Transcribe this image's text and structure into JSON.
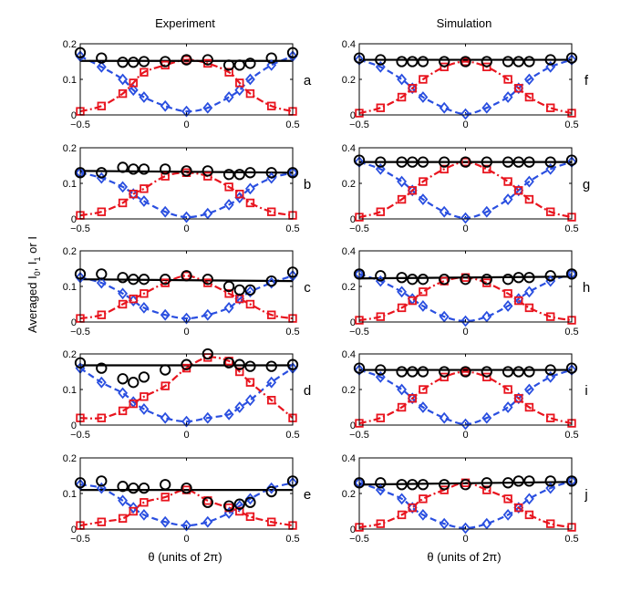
{
  "figure": {
    "column_titles": [
      "Experiment",
      "Simulation"
    ],
    "xlabel": "θ (units of 2π)",
    "ylabel": "Averaged I",
    "ylabel_sub0": "0",
    "ylabel_mid": ", I",
    "ylabel_sub1": "1",
    "ylabel_end": " or I"
  },
  "colors": {
    "I": "#000000",
    "I0": "#e8141e",
    "I1": "#2a4fe0"
  },
  "chart_data": [
    {
      "type": "scatter",
      "panel": "a",
      "column": 0,
      "row": 0,
      "xlim": [
        -0.5,
        0.5
      ],
      "ylim": [
        0,
        0.2
      ],
      "xticks": [
        -0.5,
        0,
        0.5
      ],
      "xtick_labels": [
        "−0.5",
        "0",
        "0.5"
      ],
      "yticks": [
        0,
        0.1,
        0.2
      ],
      "ytick_labels": [
        "0",
        "0.1",
        "0.2"
      ],
      "x": [
        -0.5,
        -0.4,
        -0.3,
        -0.25,
        -0.2,
        -0.1,
        0,
        0.1,
        0.2,
        0.25,
        0.3,
        0.4,
        0.5
      ],
      "series": [
        {
          "name": "I",
          "values": [
            0.175,
            0.16,
            0.148,
            0.148,
            0.15,
            0.15,
            0.155,
            0.155,
            0.14,
            0.14,
            0.145,
            0.16,
            0.175
          ],
          "fit": [
            0.152,
            0.152
          ]
        },
        {
          "name": "I0",
          "values": [
            0.01,
            0.025,
            0.06,
            0.09,
            0.12,
            0.14,
            0.155,
            0.145,
            0.12,
            0.09,
            0.06,
            0.025,
            0.01
          ]
        },
        {
          "name": "I1",
          "values": [
            0.165,
            0.135,
            0.1,
            0.07,
            0.05,
            0.025,
            0.01,
            0.02,
            0.05,
            0.07,
            0.1,
            0.14,
            0.165
          ]
        }
      ]
    },
    {
      "type": "scatter",
      "panel": "b",
      "column": 0,
      "row": 1,
      "xlim": [
        -0.5,
        0.5
      ],
      "ylim": [
        0,
        0.2
      ],
      "xticks": [
        -0.5,
        0,
        0.5
      ],
      "xtick_labels": [
        "−0.5",
        "0",
        "0.5"
      ],
      "yticks": [
        0,
        0.1,
        0.2
      ],
      "ytick_labels": [
        "0",
        "0.1",
        "0.2"
      ],
      "x": [
        -0.5,
        -0.4,
        -0.3,
        -0.25,
        -0.2,
        -0.1,
        0,
        0.1,
        0.2,
        0.25,
        0.3,
        0.4,
        0.5
      ],
      "series": [
        {
          "name": "I",
          "values": [
            0.13,
            0.13,
            0.145,
            0.14,
            0.14,
            0.14,
            0.135,
            0.135,
            0.125,
            0.125,
            0.13,
            0.13,
            0.13
          ],
          "fit": [
            0.135,
            0.13
          ]
        },
        {
          "name": "I0",
          "values": [
            0.01,
            0.02,
            0.045,
            0.07,
            0.085,
            0.12,
            0.13,
            0.12,
            0.09,
            0.07,
            0.045,
            0.02,
            0.01
          ]
        },
        {
          "name": "I1",
          "values": [
            0.13,
            0.115,
            0.09,
            0.07,
            0.05,
            0.02,
            0.005,
            0.015,
            0.04,
            0.06,
            0.085,
            0.115,
            0.13
          ]
        }
      ]
    },
    {
      "type": "scatter",
      "panel": "c",
      "column": 0,
      "row": 2,
      "xlim": [
        -0.5,
        0.5
      ],
      "ylim": [
        0,
        0.2
      ],
      "xticks": [
        -0.5,
        0,
        0.5
      ],
      "xtick_labels": [
        "−0.5",
        "0",
        "0.5"
      ],
      "yticks": [
        0,
        0.1,
        0.2
      ],
      "ytick_labels": [
        "0",
        "0.1",
        "0.2"
      ],
      "x": [
        -0.5,
        -0.4,
        -0.3,
        -0.25,
        -0.2,
        -0.1,
        0,
        0.1,
        0.2,
        0.25,
        0.3,
        0.4,
        0.5
      ],
      "series": [
        {
          "name": "I",
          "values": [
            0.135,
            0.135,
            0.125,
            0.12,
            0.12,
            0.12,
            0.13,
            0.12,
            0.1,
            0.09,
            0.09,
            0.115,
            0.14
          ],
          "fit": [
            0.12,
            0.115
          ]
        },
        {
          "name": "I0",
          "values": [
            0.01,
            0.02,
            0.05,
            0.065,
            0.08,
            0.11,
            0.13,
            0.11,
            0.08,
            0.065,
            0.05,
            0.02,
            0.01
          ]
        },
        {
          "name": "I1",
          "values": [
            0.125,
            0.11,
            0.08,
            0.06,
            0.04,
            0.02,
            0.01,
            0.02,
            0.04,
            0.065,
            0.085,
            0.11,
            0.13
          ]
        }
      ]
    },
    {
      "type": "scatter",
      "panel": "d",
      "column": 0,
      "row": 3,
      "xlim": [
        -0.5,
        0.5
      ],
      "ylim": [
        0,
        0.2
      ],
      "xticks": [
        -0.5,
        0,
        0.5
      ],
      "xtick_labels": [
        "−0.5",
        "0",
        "0.5"
      ],
      "yticks": [
        0,
        0.1,
        0.2
      ],
      "ytick_labels": [
        "0",
        "0.1",
        "0.2"
      ],
      "x": [
        -0.5,
        -0.4,
        -0.3,
        -0.25,
        -0.2,
        -0.1,
        0,
        0.1,
        0.2,
        0.25,
        0.3,
        0.4,
        0.5
      ],
      "series": [
        {
          "name": "I",
          "values": [
            0.175,
            0.16,
            0.13,
            0.12,
            0.135,
            0.155,
            0.17,
            0.2,
            0.175,
            0.17,
            0.165,
            0.165,
            0.17
          ],
          "fit": [
            0.168,
            0.168
          ]
        },
        {
          "name": "I0",
          "values": [
            0.02,
            0.02,
            0.04,
            0.06,
            0.08,
            0.11,
            0.16,
            0.19,
            0.18,
            0.15,
            0.12,
            0.07,
            0.02
          ]
        },
        {
          "name": "I1",
          "values": [
            0.16,
            0.12,
            0.09,
            0.065,
            0.045,
            0.02,
            0.01,
            0.02,
            0.03,
            0.05,
            0.07,
            0.12,
            0.16
          ]
        }
      ]
    },
    {
      "type": "scatter",
      "panel": "e",
      "column": 0,
      "row": 4,
      "xlim": [
        -0.5,
        0.5
      ],
      "ylim": [
        0,
        0.2
      ],
      "xticks": [
        -0.5,
        0,
        0.5
      ],
      "xtick_labels": [
        "−0.5",
        "0",
        "0.5"
      ],
      "yticks": [
        0,
        0.1,
        0.2
      ],
      "ytick_labels": [
        "0",
        "0.1",
        "0.2"
      ],
      "x": [
        -0.5,
        -0.4,
        -0.3,
        -0.25,
        -0.2,
        -0.1,
        0,
        0.1,
        0.2,
        0.25,
        0.3,
        0.4,
        0.5
      ],
      "series": [
        {
          "name": "I",
          "values": [
            0.13,
            0.135,
            0.12,
            0.115,
            0.115,
            0.125,
            0.115,
            0.075,
            0.065,
            0.07,
            0.075,
            0.105,
            0.135
          ],
          "fit": [
            0.11,
            0.11
          ]
        },
        {
          "name": "I0",
          "values": [
            0.01,
            0.02,
            0.03,
            0.05,
            0.075,
            0.09,
            0.11,
            0.08,
            0.06,
            0.05,
            0.035,
            0.02,
            0.01
          ]
        },
        {
          "name": "I1",
          "values": [
            0.125,
            0.115,
            0.08,
            0.06,
            0.04,
            0.02,
            0.01,
            0.02,
            0.045,
            0.065,
            0.085,
            0.115,
            0.13
          ]
        }
      ]
    },
    {
      "type": "scatter",
      "panel": "f",
      "column": 1,
      "row": 0,
      "xlim": [
        -0.5,
        0.5
      ],
      "ylim": [
        0,
        0.4
      ],
      "xticks": [
        -0.5,
        0,
        0.5
      ],
      "xtick_labels": [
        "−0.5",
        "0",
        "0.5"
      ],
      "yticks": [
        0,
        0.2,
        0.4
      ],
      "ytick_labels": [
        "0",
        "0.2",
        "0.4"
      ],
      "x": [
        -0.5,
        -0.4,
        -0.3,
        -0.25,
        -0.2,
        -0.1,
        0,
        0.1,
        0.2,
        0.25,
        0.3,
        0.4,
        0.5
      ],
      "series": [
        {
          "name": "I",
          "values": [
            0.32,
            0.31,
            0.3,
            0.3,
            0.3,
            0.3,
            0.3,
            0.3,
            0.3,
            0.3,
            0.3,
            0.31,
            0.32
          ],
          "fit": [
            0.31,
            0.31
          ]
        },
        {
          "name": "I0",
          "values": [
            0.01,
            0.04,
            0.1,
            0.15,
            0.2,
            0.27,
            0.3,
            0.27,
            0.2,
            0.15,
            0.1,
            0.04,
            0.01
          ]
        },
        {
          "name": "I1",
          "values": [
            0.31,
            0.27,
            0.2,
            0.15,
            0.1,
            0.04,
            0.005,
            0.04,
            0.1,
            0.15,
            0.2,
            0.27,
            0.31
          ]
        }
      ]
    },
    {
      "type": "scatter",
      "panel": "g",
      "column": 1,
      "row": 1,
      "xlim": [
        -0.5,
        0.5
      ],
      "ylim": [
        0,
        0.4
      ],
      "xticks": [
        -0.5,
        0,
        0.5
      ],
      "xtick_labels": [
        "−0.5",
        "0",
        "0.5"
      ],
      "yticks": [
        0,
        0.2,
        0.4
      ],
      "ytick_labels": [
        "0",
        "0.2",
        "0.4"
      ],
      "x": [
        -0.5,
        -0.4,
        -0.3,
        -0.25,
        -0.2,
        -0.1,
        0,
        0.1,
        0.2,
        0.25,
        0.3,
        0.4,
        0.5
      ],
      "series": [
        {
          "name": "I",
          "values": [
            0.33,
            0.32,
            0.32,
            0.32,
            0.32,
            0.32,
            0.32,
            0.32,
            0.32,
            0.32,
            0.32,
            0.32,
            0.33
          ],
          "fit": [
            0.32,
            0.32
          ]
        },
        {
          "name": "I0",
          "values": [
            0.01,
            0.04,
            0.11,
            0.16,
            0.21,
            0.28,
            0.32,
            0.28,
            0.21,
            0.16,
            0.11,
            0.04,
            0.01
          ]
        },
        {
          "name": "I1",
          "values": [
            0.32,
            0.28,
            0.21,
            0.16,
            0.11,
            0.04,
            0.005,
            0.04,
            0.11,
            0.16,
            0.21,
            0.28,
            0.32
          ]
        }
      ]
    },
    {
      "type": "scatter",
      "panel": "h",
      "column": 1,
      "row": 2,
      "xlim": [
        -0.5,
        0.5
      ],
      "ylim": [
        0,
        0.4
      ],
      "xticks": [
        -0.5,
        0,
        0.5
      ],
      "xtick_labels": [
        "−0.5",
        "0",
        "0.5"
      ],
      "yticks": [
        0,
        0.2,
        0.4
      ],
      "ytick_labels": [
        "0",
        "0.2",
        "0.4"
      ],
      "x": [
        -0.5,
        -0.4,
        -0.3,
        -0.25,
        -0.2,
        -0.1,
        0,
        0.1,
        0.2,
        0.25,
        0.3,
        0.4,
        0.5
      ],
      "series": [
        {
          "name": "I",
          "values": [
            0.27,
            0.26,
            0.25,
            0.24,
            0.24,
            0.24,
            0.24,
            0.24,
            0.24,
            0.25,
            0.25,
            0.26,
            0.27
          ],
          "fit": [
            0.245,
            0.255
          ]
        },
        {
          "name": "I0",
          "values": [
            0.01,
            0.03,
            0.08,
            0.12,
            0.17,
            0.23,
            0.25,
            0.22,
            0.16,
            0.12,
            0.08,
            0.03,
            0.01
          ]
        },
        {
          "name": "I1",
          "values": [
            0.27,
            0.23,
            0.17,
            0.13,
            0.09,
            0.03,
            0.005,
            0.03,
            0.09,
            0.13,
            0.17,
            0.23,
            0.27
          ]
        }
      ]
    },
    {
      "type": "scatter",
      "panel": "i",
      "column": 1,
      "row": 3,
      "xlim": [
        -0.5,
        0.5
      ],
      "ylim": [
        0,
        0.4
      ],
      "xticks": [
        -0.5,
        0,
        0.5
      ],
      "xtick_labels": [
        "−0.5",
        "0",
        "0.5"
      ],
      "yticks": [
        0,
        0.2,
        0.4
      ],
      "ytick_labels": [
        "0",
        "0.2",
        "0.4"
      ],
      "x": [
        -0.5,
        -0.4,
        -0.3,
        -0.25,
        -0.2,
        -0.1,
        0,
        0.1,
        0.2,
        0.25,
        0.3,
        0.4,
        0.5
      ],
      "series": [
        {
          "name": "I",
          "values": [
            0.32,
            0.31,
            0.3,
            0.3,
            0.3,
            0.3,
            0.3,
            0.3,
            0.3,
            0.3,
            0.3,
            0.31,
            0.32
          ],
          "fit": [
            0.31,
            0.31
          ]
        },
        {
          "name": "I0",
          "values": [
            0.01,
            0.04,
            0.1,
            0.15,
            0.2,
            0.27,
            0.3,
            0.27,
            0.2,
            0.15,
            0.1,
            0.04,
            0.01
          ]
        },
        {
          "name": "I1",
          "values": [
            0.31,
            0.27,
            0.2,
            0.15,
            0.1,
            0.04,
            0.005,
            0.04,
            0.1,
            0.15,
            0.2,
            0.27,
            0.31
          ]
        }
      ]
    },
    {
      "type": "scatter",
      "panel": "j",
      "column": 1,
      "row": 4,
      "xlim": [
        -0.5,
        0.5
      ],
      "ylim": [
        0,
        0.4
      ],
      "xticks": [
        -0.5,
        0,
        0.5
      ],
      "xtick_labels": [
        "−0.5",
        "0",
        "0.5"
      ],
      "yticks": [
        0,
        0.2,
        0.4
      ],
      "ytick_labels": [
        "0",
        "0.2",
        "0.4"
      ],
      "x": [
        -0.5,
        -0.4,
        -0.3,
        -0.25,
        -0.2,
        -0.1,
        0,
        0.1,
        0.2,
        0.25,
        0.3,
        0.4,
        0.5
      ],
      "series": [
        {
          "name": "I",
          "values": [
            0.26,
            0.26,
            0.25,
            0.25,
            0.25,
            0.25,
            0.25,
            0.26,
            0.26,
            0.27,
            0.27,
            0.27,
            0.27
          ],
          "fit": [
            0.25,
            0.265
          ]
        },
        {
          "name": "I0",
          "values": [
            0.01,
            0.03,
            0.08,
            0.12,
            0.17,
            0.22,
            0.26,
            0.22,
            0.17,
            0.12,
            0.08,
            0.03,
            0.01
          ]
        },
        {
          "name": "I1",
          "values": [
            0.26,
            0.22,
            0.17,
            0.12,
            0.08,
            0.03,
            0.005,
            0.03,
            0.08,
            0.12,
            0.17,
            0.23,
            0.27
          ]
        }
      ]
    }
  ]
}
